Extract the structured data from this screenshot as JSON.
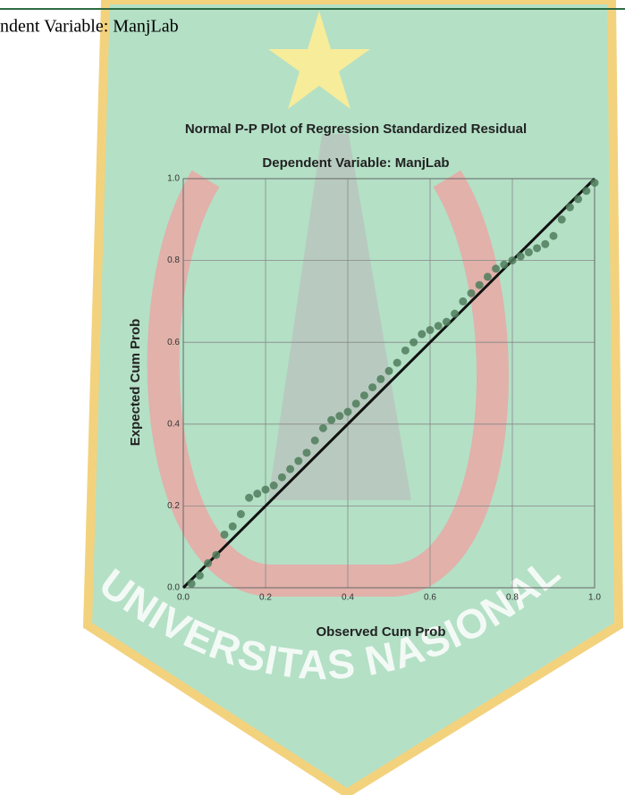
{
  "header_text": "ndent Variable: ManjLab",
  "watermark": "UNIVERSITAS NASIONAL",
  "chart_data": {
    "type": "scatter",
    "title": "Normal P-P Plot of Regression Standardized Residual",
    "subtitle": "Dependent Variable: ManjLab",
    "xlabel": "Observed Cum Prob",
    "ylabel": "Expected Cum Prob",
    "x": [
      0.02,
      0.04,
      0.06,
      0.08,
      0.1,
      0.12,
      0.14,
      0.16,
      0.18,
      0.2,
      0.22,
      0.24,
      0.26,
      0.28,
      0.3,
      0.32,
      0.34,
      0.36,
      0.38,
      0.4,
      0.42,
      0.44,
      0.46,
      0.48,
      0.5,
      0.52,
      0.54,
      0.56,
      0.58,
      0.6,
      0.62,
      0.64,
      0.66,
      0.68,
      0.7,
      0.72,
      0.74,
      0.76,
      0.78,
      0.8,
      0.82,
      0.84,
      0.86,
      0.88,
      0.9,
      0.92,
      0.94,
      0.96,
      0.98,
      1.0
    ],
    "values": [
      0.01,
      0.03,
      0.06,
      0.08,
      0.13,
      0.15,
      0.18,
      0.22,
      0.23,
      0.24,
      0.25,
      0.27,
      0.29,
      0.31,
      0.33,
      0.36,
      0.39,
      0.41,
      0.42,
      0.43,
      0.45,
      0.47,
      0.49,
      0.51,
      0.53,
      0.55,
      0.58,
      0.6,
      0.62,
      0.63,
      0.64,
      0.65,
      0.67,
      0.7,
      0.72,
      0.74,
      0.76,
      0.78,
      0.79,
      0.8,
      0.81,
      0.82,
      0.83,
      0.84,
      0.86,
      0.9,
      0.93,
      0.95,
      0.97,
      0.99
    ],
    "color": "#4f7d5c",
    "xlim": [
      0,
      1
    ],
    "ylim": [
      0,
      1
    ],
    "xticks": [
      {
        "value": 0,
        "label": "0.0"
      },
      0.2,
      0.4,
      0.6,
      0.8,
      {
        "value": 1,
        "label": "1.0"
      }
    ],
    "yticks": [
      {
        "value": 0,
        "label": "0.0"
      },
      0.2,
      0.4,
      0.6,
      0.8,
      {
        "value": 1,
        "label": "1.0"
      }
    ],
    "grid": true,
    "reference_line": true
  }
}
